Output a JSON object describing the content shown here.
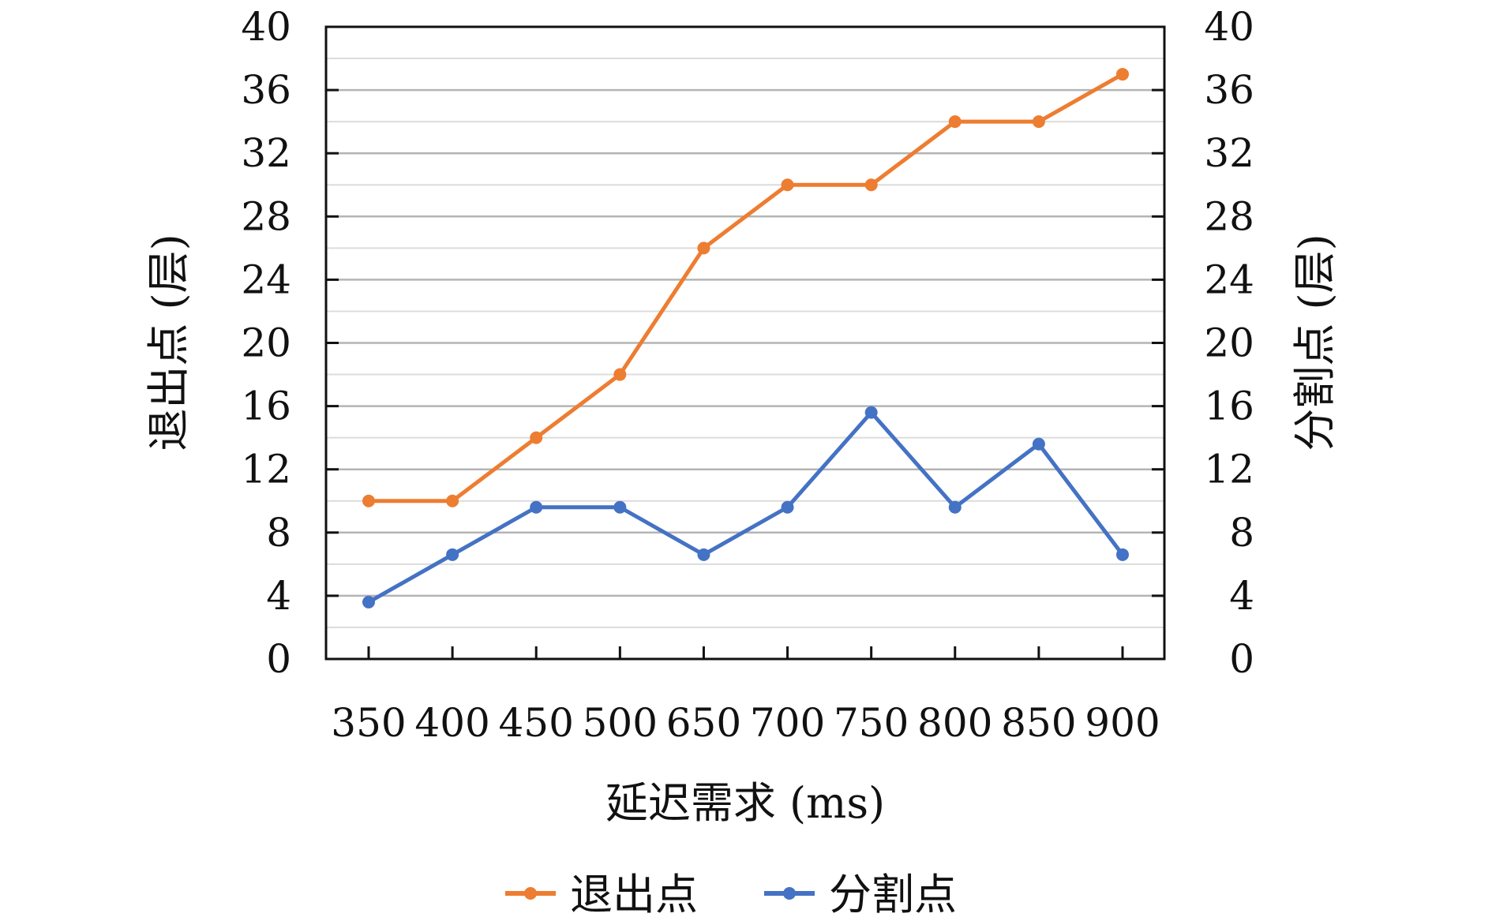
{
  "chart_data": {
    "type": "line",
    "categories": [
      "350",
      "400",
      "450",
      "500",
      "650",
      "700",
      "750",
      "800",
      "850",
      "900"
    ],
    "series": [
      {
        "name": "退出点",
        "color": "#ED7D31",
        "values": [
          10,
          10,
          14,
          18,
          26,
          30,
          30,
          34,
          34,
          37
        ]
      },
      {
        "name": "分割点",
        "color": "#4472C4",
        "values": [
          3.6,
          6.6,
          9.6,
          9.6,
          6.6,
          9.6,
          15.6,
          9.6,
          13.6,
          6.6
        ]
      }
    ],
    "xlabel": "延迟需求 (ms)",
    "ylabel_left": "退出点 (层)",
    "ylabel_right": "分割点 (层)",
    "ylim": [
      0,
      40
    ],
    "yticks": [
      "0",
      "4",
      "8",
      "12",
      "16",
      "20",
      "24",
      "28",
      "32",
      "36",
      "40"
    ],
    "grid": true,
    "legend_position": "bottom"
  }
}
